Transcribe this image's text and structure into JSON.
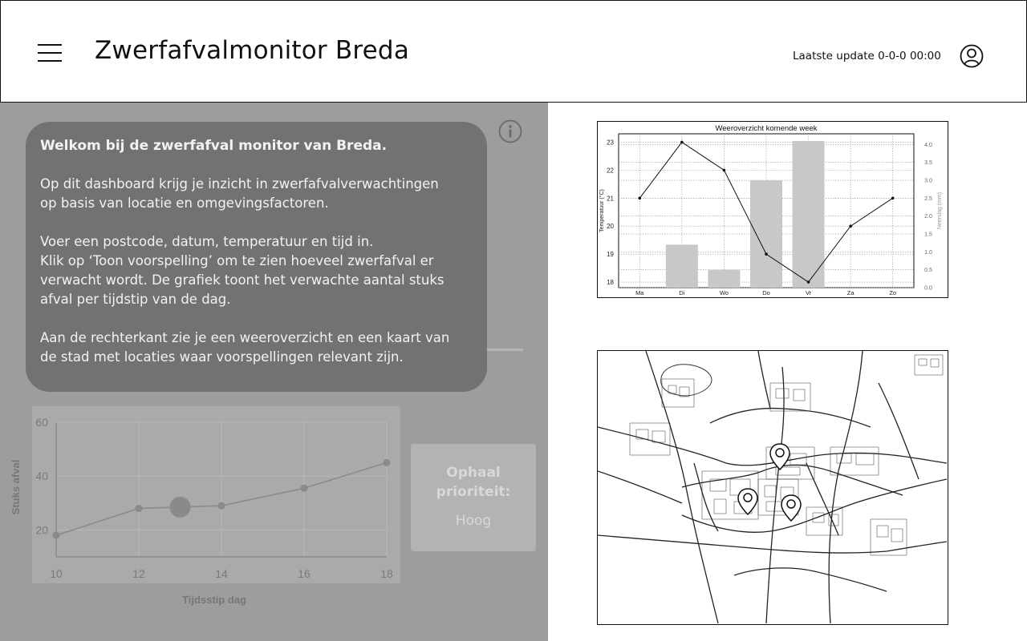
{
  "header": {
    "title": "Zwerfafvalmonitor Breda",
    "last_update": "Laatste update 0-0-0 00:00",
    "menu_icon": "hamburger-menu-icon",
    "user_icon": "user-account-icon"
  },
  "welcome": {
    "title": "Welkom bij de zwerfafval monitor van Breda.",
    "paragraph1_line1": "Op dit dashboard krijg je inzicht in zwerfafvalverwachtingen",
    "paragraph1_line2": "op basis van locatie en omgevingsfactoren.",
    "paragraph2_line1": "Voer een postcode, datum, temperatuur en tijd in.",
    "paragraph2_line2": "Klik op ‘Toon voorspelling’ om te zien hoeveel zwerfafval er",
    "paragraph2_line3": "verwacht wordt. De grafiek toont het verwachte aantal stuks",
    "paragraph2_line4": "afval per tijdstip van de dag.",
    "paragraph3_line1": "Aan de rechterkant zie je een weeroverzicht en een kaart van",
    "paragraph3_line2": "de stad met locaties waar voorspellingen relevant zijn.",
    "info_icon": "info-icon"
  },
  "priority": {
    "label_line1": "Ophaal",
    "label_line2": "prioriteit:",
    "value": "Hoog"
  },
  "chart_data": [
    {
      "type": "line",
      "title": "",
      "xlabel": "Tijdsstip dag",
      "ylabel": "Stuks afval",
      "x": [
        10,
        12,
        13,
        14,
        16,
        18
      ],
      "y": [
        18,
        28,
        28.5,
        29,
        35.5,
        45
      ],
      "highlight_x": 13,
      "xticks": [
        10,
        12,
        14,
        16,
        18
      ],
      "yticks": [
        20,
        40,
        60
      ],
      "xlim": [
        10,
        18
      ],
      "ylim": [
        10,
        60
      ],
      "grid": true
    },
    {
      "type": "bar+line",
      "title": "Weeroverzicht komende week",
      "categories": [
        "Ma",
        "Di",
        "Wo",
        "Do",
        "Vr",
        "Za",
        "Zo"
      ],
      "ylabel": "Temperatuur (°C)",
      "ylabel_right": "Neerslag (mm)",
      "temperature": [
        21,
        23,
        22,
        19,
        18,
        20,
        21
      ],
      "precipitation": [
        0,
        1.2,
        0.5,
        3.0,
        4.1,
        0,
        0
      ],
      "ylim": [
        17.8,
        23.3
      ],
      "yticks": [
        18,
        19,
        20,
        21,
        22,
        23
      ],
      "ylim_right": [
        0,
        4.3
      ],
      "yticks_right": [
        "0.0",
        "0.5",
        "1.0",
        "1.5",
        "2.0",
        "2.5",
        "3.0",
        "3.5",
        "4.0"
      ],
      "grid": true
    }
  ],
  "map": {
    "marker_icon": "map-pin-icon",
    "marker_count": 3
  }
}
